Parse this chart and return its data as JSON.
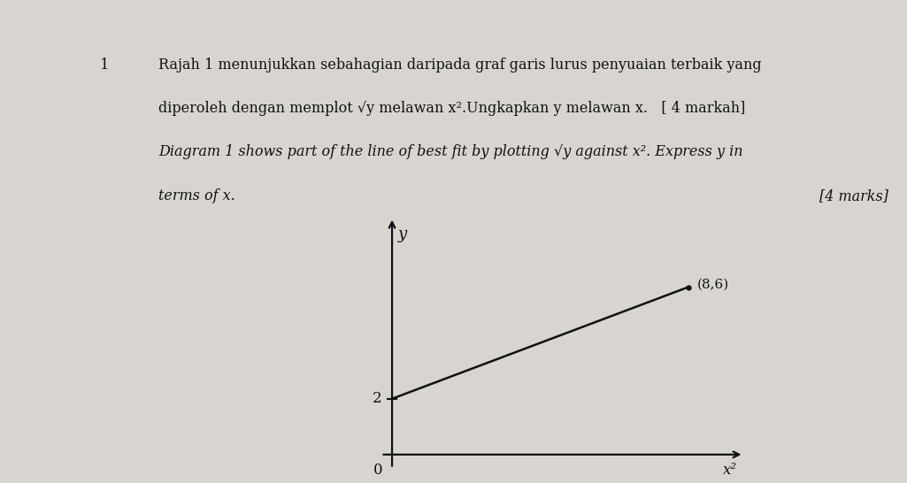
{
  "title_line1": "Rajah 1 menunjukkan sebahagian daripada graf garis lurus penyuaian terbaik yang",
  "title_line2": "diperoleh dengan memplot √y melawan x².Ungkapkan y melawan x.   [ 4 markah]",
  "title_line3_italic": "Diagram 1 shows part of the line of best fit by plotting √y against x². Express y in",
  "title_line4_italic": "terms of x.",
  "marks_text": "[4 marks]",
  "number_label": "1",
  "y_label": "y",
  "x_label": "x²",
  "origin_label": "0",
  "y_intercept": 2,
  "point_x": 8,
  "point_y": 6,
  "point_label": "(8,6)",
  "background_color": "#d8d4d0",
  "line_color": "#111111",
  "text_color": "#111111",
  "xlim": [
    -0.3,
    9.5
  ],
  "ylim": [
    -0.5,
    8.5
  ],
  "figsize": [
    10.25,
    5.46
  ],
  "dpi": 100
}
